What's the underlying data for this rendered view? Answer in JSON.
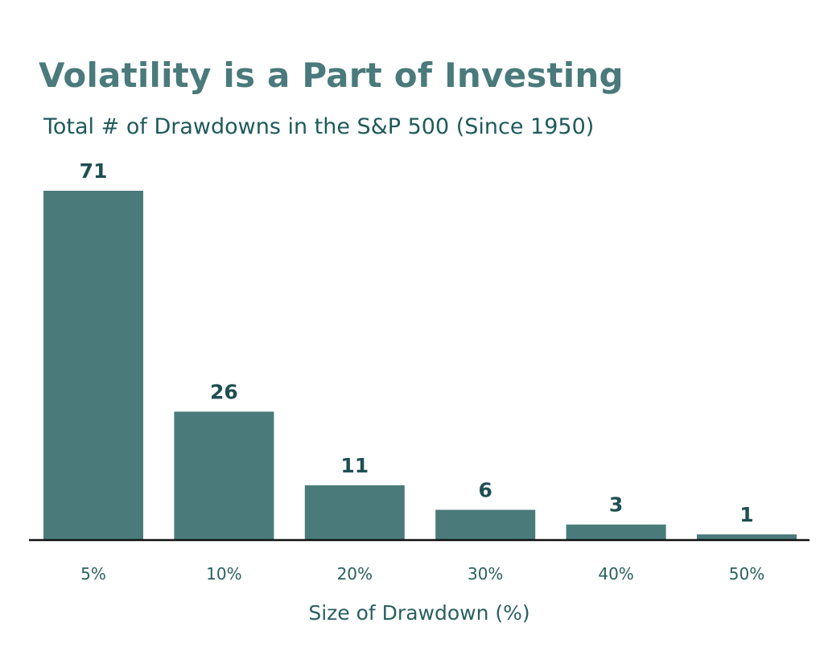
{
  "chart_data": {
    "type": "bar",
    "title": "Volatility is a Part of Investing",
    "subtitle": "Total # of Drawdowns in the S&P 500 (Since 1950)",
    "categories": [
      "5%",
      "10%",
      "20%",
      "30%",
      "40%",
      "50%"
    ],
    "values": [
      71,
      26,
      11,
      6,
      3,
      1
    ],
    "xlabel": "Size of Drawdown (%)",
    "ylabel": "",
    "ylim": [
      0,
      71
    ],
    "grid": false,
    "legend": "none",
    "data_labels": true,
    "y_axis_visible": false
  },
  "colors": {
    "title": "#4a7a7b",
    "subtitle": "#1f5a5c",
    "bar": "#4a7a7a",
    "value_label": "#1f4f52",
    "tick_label": "#2a5f61",
    "axis_line": "#111111",
    "background": "#ffffff"
  }
}
